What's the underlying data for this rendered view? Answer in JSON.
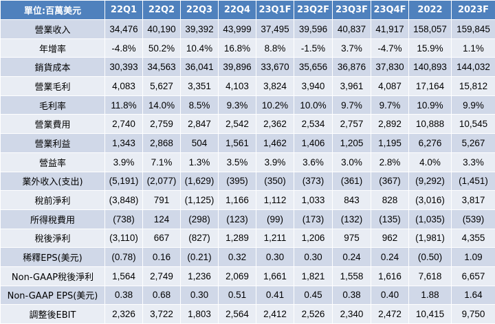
{
  "table": {
    "columns": [
      "單位:百萬美元",
      "22Q1",
      "22Q2",
      "22Q3",
      "22Q4",
      "23Q1F",
      "23Q2F",
      "23Q3F",
      "23Q4F",
      "2022",
      "2023F"
    ],
    "rows": [
      {
        "label": "營業收入",
        "values": [
          "34,476",
          "40,190",
          "39,392",
          "43,999",
          "37,495",
          "39,596",
          "40,837",
          "41,917",
          "158,057",
          "159,845"
        ]
      },
      {
        "label": "年增率",
        "values": [
          "-4.8%",
          "50.2%",
          "10.4%",
          "16.8%",
          "8.8%",
          "-1.5%",
          "3.7%",
          "-4.7%",
          "15.9%",
          "1.1%"
        ]
      },
      {
        "label": "銷貨成本",
        "values": [
          "30,393",
          "34,563",
          "36,041",
          "39,896",
          "33,670",
          "35,656",
          "36,876",
          "37,830",
          "140,893",
          "144,032"
        ]
      },
      {
        "label": "營業毛利",
        "values": [
          "4,083",
          "5,627",
          "3,351",
          "4,103",
          "3,824",
          "3,940",
          "3,961",
          "4,087",
          "17,164",
          "15,812"
        ]
      },
      {
        "label": "毛利率",
        "values": [
          "11.8%",
          "14.0%",
          "8.5%",
          "9.3%",
          "10.2%",
          "10.0%",
          "9.7%",
          "9.7%",
          "10.9%",
          "9.9%"
        ]
      },
      {
        "label": "營業費用",
        "values": [
          "2,740",
          "2,759",
          "2,847",
          "2,542",
          "2,362",
          "2,534",
          "2,757",
          "2,892",
          "10,888",
          "10,545"
        ]
      },
      {
        "label": "營業利益",
        "values": [
          "1,343",
          "2,868",
          "504",
          "1,561",
          "1,462",
          "1,406",
          "1,205",
          "1,195",
          "6,276",
          "5,267"
        ]
      },
      {
        "label": "營益率",
        "values": [
          "3.9%",
          "7.1%",
          "1.3%",
          "3.5%",
          "3.9%",
          "3.6%",
          "3.0%",
          "2.8%",
          "4.0%",
          "3.3%"
        ]
      },
      {
        "label": "業外收入(支出)",
        "values": [
          "(5,191)",
          "(2,077)",
          "(1,629)",
          "(395)",
          "(350)",
          "(373)",
          "(361)",
          "(367)",
          "(9,292)",
          "(1,451)"
        ]
      },
      {
        "label": "稅前淨利",
        "values": [
          "(3,848)",
          "791",
          "(1,125)",
          "1,166",
          "1,112",
          "1,033",
          "843",
          "828",
          "(3,016)",
          "3,817"
        ]
      },
      {
        "label": "所得稅費用",
        "values": [
          "(738)",
          "124",
          "(298)",
          "(123)",
          "(99)",
          "(173)",
          "(132)",
          "(135)",
          "(1,035)",
          "(539)"
        ]
      },
      {
        "label": "稅後淨利",
        "values": [
          "(3,110)",
          "667",
          "(827)",
          "1,289",
          "1,211",
          "1,206",
          "975",
          "962",
          "(1,981)",
          "4,355"
        ]
      },
      {
        "label": "稀釋EPS(美元)",
        "values": [
          "(0.78)",
          "0.16",
          "(0.21)",
          "0.32",
          "0.30",
          "0.30",
          "0.24",
          "0.24",
          "(0.50)",
          "1.09"
        ]
      },
      {
        "label": "Non-GAAP稅後淨利",
        "values": [
          "1,564",
          "2,749",
          "1,236",
          "2,069",
          "1,661",
          "1,821",
          "1,558",
          "1,616",
          "7,618",
          "6,657"
        ]
      },
      {
        "label": "Non-GAAP EPS(美元)",
        "values": [
          "0.38",
          "0.68",
          "0.30",
          "0.51",
          "0.41",
          "0.45",
          "0.38",
          "0.40",
          "1.88",
          "1.64"
        ]
      },
      {
        "label": "調整後EBIT",
        "values": [
          "2,326",
          "3,722",
          "1,803",
          "2,564",
          "2,412",
          "2,526",
          "2,340",
          "2,472",
          "10,415",
          "9,750"
        ]
      }
    ]
  }
}
